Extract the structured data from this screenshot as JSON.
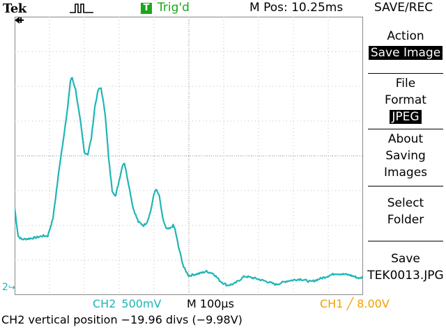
{
  "header": {
    "brand": "Tek",
    "acq_icon": "pulse-acquisition-icon",
    "trigger_box": "T",
    "trigger_status": "Trig'd",
    "m_pos": "M Pos: 10.25ms",
    "menu_title": "SAVE/REC"
  },
  "menu": {
    "action_label": "Action",
    "action_value": "Save Image",
    "file_label_1": "File",
    "file_label_2": "Format",
    "file_value": "JPEG",
    "about_1": "About",
    "about_2": "Saving",
    "about_3": "Images",
    "select_1": "Select",
    "select_2": "Folder",
    "save_1": "Save",
    "save_2": "TEK0013.JPG"
  },
  "graticule": {
    "ground_marker": "2",
    "trigger_position_marker": "trigger-position-arrow-icon"
  },
  "readouts": {
    "ch2_label": "CH2",
    "ch2_volts": "500mV",
    "timebase": "M 100µs",
    "trigger": "CH1 ╱ 8.00V"
  },
  "status_line": "CH2 vertical position −19.96 divs (−9.98V)",
  "colors": {
    "trace": "#1fb5b5",
    "trigger": "#f0a000",
    "trig_status": "#1aa61a",
    "grid": "#bbbbbb"
  },
  "waveform": {
    "channel": "CH2",
    "x_div_range": [
      0,
      10
    ],
    "y_div_range": [
      0,
      8
    ],
    "points_div": [
      [
        0.0,
        2.5
      ],
      [
        0.1,
        1.7
      ],
      [
        0.2,
        1.6
      ],
      [
        0.4,
        1.62
      ],
      [
        0.6,
        1.65
      ],
      [
        0.8,
        1.7
      ],
      [
        0.95,
        1.7
      ],
      [
        1.1,
        2.2
      ],
      [
        1.3,
        3.8
      ],
      [
        1.5,
        5.2
      ],
      [
        1.6,
        6.15
      ],
      [
        1.65,
        6.25
      ],
      [
        1.75,
        5.9
      ],
      [
        1.9,
        4.9
      ],
      [
        2.0,
        4.1
      ],
      [
        2.1,
        4.05
      ],
      [
        2.2,
        4.5
      ],
      [
        2.3,
        5.4
      ],
      [
        2.4,
        5.9
      ],
      [
        2.48,
        5.95
      ],
      [
        2.6,
        5.2
      ],
      [
        2.7,
        3.9
      ],
      [
        2.8,
        3.0
      ],
      [
        2.9,
        2.85
      ],
      [
        3.0,
        3.3
      ],
      [
        3.1,
        3.75
      ],
      [
        3.15,
        3.8
      ],
      [
        3.25,
        3.3
      ],
      [
        3.4,
        2.5
      ],
      [
        3.55,
        2.1
      ],
      [
        3.7,
        2.0
      ],
      [
        3.8,
        2.1
      ],
      [
        3.9,
        2.4
      ],
      [
        4.0,
        2.9
      ],
      [
        4.05,
        3.05
      ],
      [
        4.15,
        2.85
      ],
      [
        4.25,
        2.2
      ],
      [
        4.35,
        1.9
      ],
      [
        4.45,
        1.9
      ],
      [
        4.55,
        2.0
      ],
      [
        4.6,
        1.9
      ],
      [
        4.7,
        1.4
      ],
      [
        4.85,
        0.8
      ],
      [
        5.0,
        0.55
      ],
      [
        5.1,
        0.58
      ],
      [
        5.3,
        0.62
      ],
      [
        5.5,
        0.68
      ],
      [
        5.7,
        0.62
      ],
      [
        5.9,
        0.4
      ],
      [
        6.1,
        0.28
      ],
      [
        6.3,
        0.32
      ],
      [
        6.6,
        0.54
      ],
      [
        6.9,
        0.48
      ],
      [
        7.2,
        0.4
      ],
      [
        7.5,
        0.3
      ],
      [
        7.8,
        0.4
      ],
      [
        8.2,
        0.46
      ],
      [
        8.5,
        0.38
      ],
      [
        8.8,
        0.48
      ],
      [
        9.2,
        0.62
      ],
      [
        9.6,
        0.58
      ],
      [
        9.9,
        0.48
      ],
      [
        10.0,
        0.52
      ]
    ]
  }
}
